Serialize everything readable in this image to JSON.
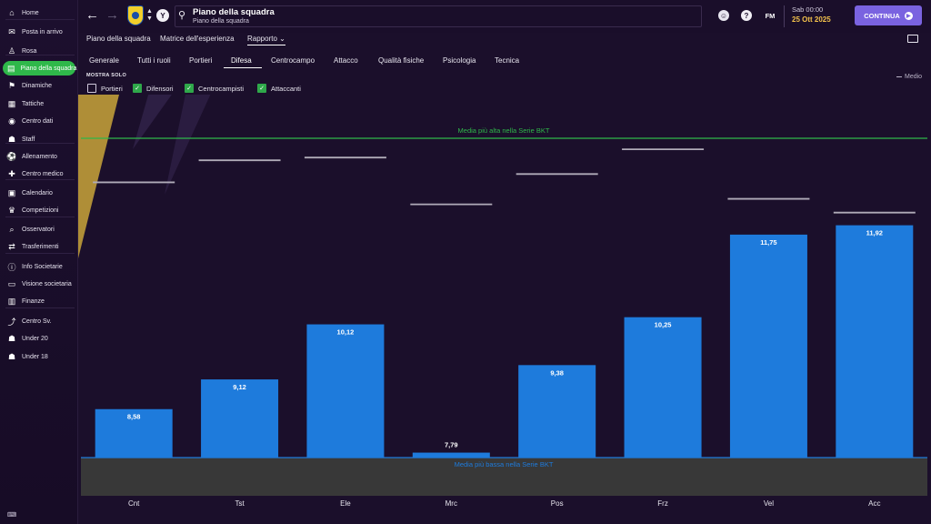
{
  "sidebar": {
    "items": [
      {
        "label": "Home",
        "icon": "home-icon"
      },
      {
        "label": "Posta in arrivo",
        "icon": "inbox-icon"
      },
      {
        "label": "Rosa",
        "icon": "shirt-icon"
      },
      {
        "label": "Piano della squadra",
        "icon": "squad-plan-icon"
      },
      {
        "label": "Dinamiche",
        "icon": "dynamics-icon"
      },
      {
        "label": "Tattiche",
        "icon": "tactics-icon"
      },
      {
        "label": "Centro dati",
        "icon": "data-icon"
      },
      {
        "label": "Staff",
        "icon": "staff-icon"
      },
      {
        "label": "Allenamento",
        "icon": "training-icon"
      },
      {
        "label": "Centro medico",
        "icon": "medical-icon"
      },
      {
        "label": "Calendario",
        "icon": "calendar-icon"
      },
      {
        "label": "Competizioni",
        "icon": "trophy-icon"
      },
      {
        "label": "Osservatori",
        "icon": "scout-icon"
      },
      {
        "label": "Trasferimenti",
        "icon": "transfer-icon"
      },
      {
        "label": "Info Societarie",
        "icon": "info-icon"
      },
      {
        "label": "Visione societaria",
        "icon": "vision-icon"
      },
      {
        "label": "Finanze",
        "icon": "finance-icon"
      },
      {
        "label": "Centro Sv.",
        "icon": "development-icon"
      },
      {
        "label": "Under 20",
        "icon": "u20-icon"
      },
      {
        "label": "Under 18",
        "icon": "u18-icon"
      }
    ],
    "active_index": 3
  },
  "header": {
    "title": "Piano della squadra",
    "subtitle": "Piano della squadra",
    "club_initial": "Y",
    "date_day": "Sab 00:00",
    "date_date": "25 Ott 2025",
    "fm_label": "FM",
    "help_label": "?",
    "continue_label": "CONTINUA"
  },
  "subnav": {
    "items": [
      "Piano della squadra",
      "Matrice dell'esperienza",
      "Rapporto"
    ],
    "active_index": 2
  },
  "tabs": {
    "items": [
      "Generale",
      "Tutti i ruoli",
      "Portieri",
      "Difesa",
      "Centrocampo",
      "Attacco",
      "Qualità fisiche",
      "Psicologia",
      "Tecnica"
    ],
    "active_index": 3
  },
  "filters": {
    "title": "MOSTRA SOLO",
    "options": [
      {
        "label": "Portieri",
        "checked": false
      },
      {
        "label": "Difensori",
        "checked": true
      },
      {
        "label": "Centrocampisti",
        "checked": true
      },
      {
        "label": "Attaccanti",
        "checked": true
      }
    ]
  },
  "legend": {
    "average_label": "Medio"
  },
  "chart_data": {
    "type": "bar",
    "categories": [
      "Cnt",
      "Tst",
      "Ele",
      "Mrc",
      "Pos",
      "Frz",
      "Vel",
      "Acc"
    ],
    "values": [
      8.58,
      9.12,
      10.12,
      7.79,
      9.38,
      10.25,
      11.75,
      11.92
    ],
    "value_labels": [
      "8,58",
      "9,12",
      "10,12",
      "7,79",
      "9,38",
      "10,25",
      "11,75",
      "11,92"
    ],
    "baseline_value": 7.7,
    "top_value": 13.5,
    "averages": [
      12.7,
      13.1,
      13.15,
      12.3,
      12.85,
      13.3,
      12.4,
      12.15
    ],
    "high_line_label": "Media più alta nella Serie BKT",
    "low_line_label": "Media più bassa nella Serie BKT",
    "colors": {
      "bar": "#1e7bdc",
      "high_line": "#2fb84a",
      "low_line": "#1e7bdc",
      "average": "#b0abb8",
      "low_area": "#383838"
    }
  }
}
